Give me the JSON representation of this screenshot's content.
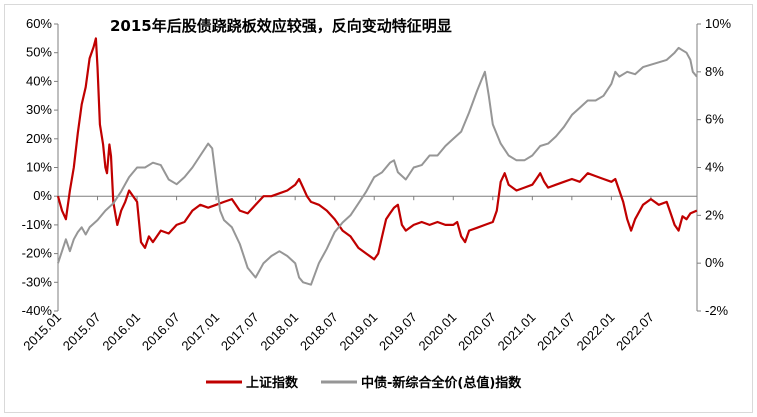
{
  "chart_data": {
    "type": "line",
    "title": "2015年后股债跷跷板效应较强，反向变动特征明显",
    "x_tick_labels": [
      "2015.01",
      "2015.07",
      "2016.01",
      "2016.07",
      "2017.01",
      "2017.07",
      "2018.01",
      "2018.07",
      "2019.01",
      "2019.07",
      "2020.01",
      "2020.07",
      "2021.01",
      "2021.07",
      "2022.01",
      "2022.07"
    ],
    "y_left_ticks": [
      "60%",
      "50%",
      "40%",
      "30%",
      "20%",
      "10%",
      "0%",
      "-10%",
      "-20%",
      "-30%",
      "-40%"
    ],
    "y_right_ticks": [
      "10%",
      "8%",
      "6%",
      "4%",
      "2%",
      "0%",
      "-2%"
    ],
    "ylim_left": [
      -40,
      60
    ],
    "ylim_right": [
      -2,
      10
    ],
    "x_start_year": 2015.0,
    "x_end_year": 2023.083,
    "series": [
      {
        "name": "上证指数",
        "axis": "left",
        "color": "#c00000",
        "points": [
          [
            2015.0,
            0
          ],
          [
            2015.05,
            -5
          ],
          [
            2015.1,
            -8
          ],
          [
            2015.15,
            2
          ],
          [
            2015.2,
            10
          ],
          [
            2015.25,
            22
          ],
          [
            2015.3,
            32
          ],
          [
            2015.35,
            38
          ],
          [
            2015.4,
            48
          ],
          [
            2015.45,
            52
          ],
          [
            2015.48,
            55
          ],
          [
            2015.5,
            45
          ],
          [
            2015.53,
            25
          ],
          [
            2015.57,
            18
          ],
          [
            2015.6,
            10
          ],
          [
            2015.62,
            8
          ],
          [
            2015.65,
            18
          ],
          [
            2015.67,
            14
          ],
          [
            2015.7,
            -2
          ],
          [
            2015.75,
            -10
          ],
          [
            2015.8,
            -5
          ],
          [
            2015.85,
            -2
          ],
          [
            2015.9,
            2
          ],
          [
            2015.95,
            0
          ],
          [
            2016.0,
            -2
          ],
          [
            2016.05,
            -16
          ],
          [
            2016.1,
            -18
          ],
          [
            2016.15,
            -14
          ],
          [
            2016.2,
            -16
          ],
          [
            2016.3,
            -12
          ],
          [
            2016.4,
            -13
          ],
          [
            2016.5,
            -10
          ],
          [
            2016.6,
            -9
          ],
          [
            2016.7,
            -5
          ],
          [
            2016.8,
            -3
          ],
          [
            2016.9,
            -4
          ],
          [
            2017.0,
            -3
          ],
          [
            2017.1,
            -2
          ],
          [
            2017.2,
            -1
          ],
          [
            2017.3,
            -5
          ],
          [
            2017.4,
            -6
          ],
          [
            2017.5,
            -3
          ],
          [
            2017.6,
            0
          ],
          [
            2017.7,
            0
          ],
          [
            2017.8,
            1
          ],
          [
            2017.9,
            2
          ],
          [
            2018.0,
            4
          ],
          [
            2018.05,
            6
          ],
          [
            2018.1,
            3
          ],
          [
            2018.15,
            0
          ],
          [
            2018.2,
            -2
          ],
          [
            2018.3,
            -3
          ],
          [
            2018.4,
            -5
          ],
          [
            2018.5,
            -8
          ],
          [
            2018.6,
            -12
          ],
          [
            2018.7,
            -14
          ],
          [
            2018.8,
            -18
          ],
          [
            2018.9,
            -20
          ],
          [
            2019.0,
            -22
          ],
          [
            2019.05,
            -20
          ],
          [
            2019.1,
            -14
          ],
          [
            2019.15,
            -8
          ],
          [
            2019.2,
            -6
          ],
          [
            2019.25,
            -4
          ],
          [
            2019.3,
            -3
          ],
          [
            2019.35,
            -10
          ],
          [
            2019.4,
            -12
          ],
          [
            2019.5,
            -10
          ],
          [
            2019.6,
            -9
          ],
          [
            2019.7,
            -10
          ],
          [
            2019.8,
            -9
          ],
          [
            2019.9,
            -10
          ],
          [
            2020.0,
            -10
          ],
          [
            2020.05,
            -9
          ],
          [
            2020.1,
            -14
          ],
          [
            2020.15,
            -16
          ],
          [
            2020.2,
            -12
          ],
          [
            2020.3,
            -11
          ],
          [
            2020.4,
            -10
          ],
          [
            2020.5,
            -9
          ],
          [
            2020.55,
            -5
          ],
          [
            2020.6,
            5
          ],
          [
            2020.65,
            8
          ],
          [
            2020.7,
            4
          ],
          [
            2020.8,
            2
          ],
          [
            2020.9,
            3
          ],
          [
            2021.0,
            4
          ],
          [
            2021.05,
            6
          ],
          [
            2021.1,
            8
          ],
          [
            2021.15,
            5
          ],
          [
            2021.2,
            3
          ],
          [
            2021.3,
            4
          ],
          [
            2021.4,
            5
          ],
          [
            2021.5,
            6
          ],
          [
            2021.6,
            5
          ],
          [
            2021.7,
            8
          ],
          [
            2021.8,
            7
          ],
          [
            2021.9,
            6
          ],
          [
            2022.0,
            5
          ],
          [
            2022.05,
            6
          ],
          [
            2022.1,
            2
          ],
          [
            2022.15,
            -2
          ],
          [
            2022.2,
            -8
          ],
          [
            2022.25,
            -12
          ],
          [
            2022.3,
            -8
          ],
          [
            2022.4,
            -3
          ],
          [
            2022.5,
            -1
          ],
          [
            2022.6,
            -3
          ],
          [
            2022.7,
            -2
          ],
          [
            2022.75,
            -6
          ],
          [
            2022.8,
            -10
          ],
          [
            2022.85,
            -12
          ],
          [
            2022.9,
            -7
          ],
          [
            2022.95,
            -8
          ],
          [
            2023.0,
            -6
          ],
          [
            2023.08,
            -5
          ]
        ]
      },
      {
        "name": "中债-新综合全价(总值)指数",
        "axis": "right",
        "color": "#969696",
        "points": [
          [
            2015.0,
            0.0
          ],
          [
            2015.05,
            0.5
          ],
          [
            2015.1,
            1.0
          ],
          [
            2015.15,
            0.5
          ],
          [
            2015.2,
            1.0
          ],
          [
            2015.25,
            1.3
          ],
          [
            2015.3,
            1.5
          ],
          [
            2015.35,
            1.2
          ],
          [
            2015.4,
            1.5
          ],
          [
            2015.5,
            1.8
          ],
          [
            2015.6,
            2.2
          ],
          [
            2015.7,
            2.5
          ],
          [
            2015.8,
            3.0
          ],
          [
            2015.9,
            3.6
          ],
          [
            2016.0,
            4.0
          ],
          [
            2016.1,
            4.0
          ],
          [
            2016.2,
            4.2
          ],
          [
            2016.3,
            4.1
          ],
          [
            2016.4,
            3.5
          ],
          [
            2016.5,
            3.3
          ],
          [
            2016.6,
            3.6
          ],
          [
            2016.7,
            4.0
          ],
          [
            2016.8,
            4.5
          ],
          [
            2016.9,
            5.0
          ],
          [
            2016.95,
            4.8
          ],
          [
            2017.0,
            3.5
          ],
          [
            2017.05,
            2.2
          ],
          [
            2017.1,
            1.8
          ],
          [
            2017.2,
            1.5
          ],
          [
            2017.3,
            0.8
          ],
          [
            2017.4,
            -0.2
          ],
          [
            2017.5,
            -0.6
          ],
          [
            2017.6,
            0.0
          ],
          [
            2017.7,
            0.3
          ],
          [
            2017.8,
            0.5
          ],
          [
            2017.9,
            0.3
          ],
          [
            2018.0,
            0.0
          ],
          [
            2018.05,
            -0.6
          ],
          [
            2018.1,
            -0.8
          ],
          [
            2018.2,
            -0.9
          ],
          [
            2018.3,
            0.0
          ],
          [
            2018.4,
            0.6
          ],
          [
            2018.5,
            1.3
          ],
          [
            2018.6,
            1.7
          ],
          [
            2018.7,
            2.0
          ],
          [
            2018.8,
            2.5
          ],
          [
            2018.9,
            3.0
          ],
          [
            2019.0,
            3.6
          ],
          [
            2019.1,
            3.8
          ],
          [
            2019.2,
            4.2
          ],
          [
            2019.25,
            4.3
          ],
          [
            2019.3,
            3.8
          ],
          [
            2019.4,
            3.5
          ],
          [
            2019.5,
            4.0
          ],
          [
            2019.6,
            4.1
          ],
          [
            2019.7,
            4.5
          ],
          [
            2019.8,
            4.5
          ],
          [
            2019.9,
            4.9
          ],
          [
            2020.0,
            5.2
          ],
          [
            2020.1,
            5.5
          ],
          [
            2020.2,
            6.3
          ],
          [
            2020.3,
            7.2
          ],
          [
            2020.35,
            7.6
          ],
          [
            2020.4,
            8.0
          ],
          [
            2020.45,
            7.0
          ],
          [
            2020.5,
            5.8
          ],
          [
            2020.6,
            5.0
          ],
          [
            2020.7,
            4.5
          ],
          [
            2020.8,
            4.3
          ],
          [
            2020.9,
            4.3
          ],
          [
            2021.0,
            4.5
          ],
          [
            2021.1,
            4.9
          ],
          [
            2021.2,
            5.0
          ],
          [
            2021.3,
            5.3
          ],
          [
            2021.4,
            5.7
          ],
          [
            2021.5,
            6.2
          ],
          [
            2021.6,
            6.5
          ],
          [
            2021.7,
            6.8
          ],
          [
            2021.8,
            6.8
          ],
          [
            2021.9,
            7.0
          ],
          [
            2022.0,
            7.5
          ],
          [
            2022.05,
            8.0
          ],
          [
            2022.1,
            7.8
          ],
          [
            2022.2,
            8.0
          ],
          [
            2022.3,
            7.9
          ],
          [
            2022.4,
            8.2
          ],
          [
            2022.5,
            8.3
          ],
          [
            2022.6,
            8.4
          ],
          [
            2022.7,
            8.5
          ],
          [
            2022.8,
            8.8
          ],
          [
            2022.85,
            9.0
          ],
          [
            2022.9,
            8.9
          ],
          [
            2022.95,
            8.8
          ],
          [
            2023.0,
            8.5
          ],
          [
            2023.03,
            8.0
          ],
          [
            2023.08,
            7.8
          ]
        ]
      }
    ]
  }
}
